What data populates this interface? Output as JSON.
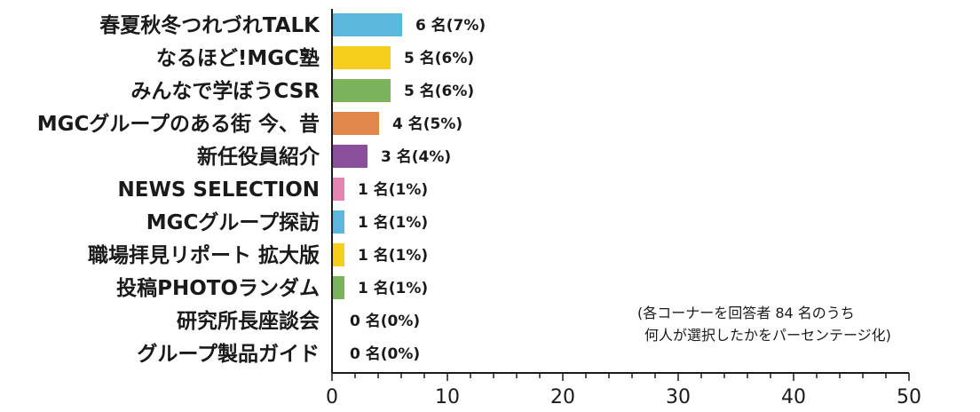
{
  "chart_data": {
    "type": "bar",
    "orientation": "horizontal",
    "categories": [
      "春夏秋冬つれづれTALK",
      "なるほど!MGC塾",
      "みんなで学ぼうCSR",
      "MGCグループのある街 今、昔",
      "新任役員紹介",
      "NEWS SELECTION",
      "MGCグループ探訪",
      "職場拝見リポート 拡大版",
      "投稿PHOTOランダム",
      "研究所長座談会",
      "グループ製品ガイド"
    ],
    "values": [
      6,
      5,
      5,
      4,
      3,
      1,
      1,
      1,
      1,
      0,
      0
    ],
    "value_labels": [
      "6 名(7%)",
      "5 名(6%)",
      "5 名(6%)",
      "4 名(5%)",
      "3 名(4%)",
      "1 名(1%)",
      "1 名(1%)",
      "1 名(1%)",
      "1 名(1%)",
      "0 名(0%)",
      "0 名(0%)"
    ],
    "colors": [
      "#5bb8dd",
      "#f5cf1c",
      "#7cb35a",
      "#e0874a",
      "#8a4e9a",
      "#e884b4",
      "#5bb8dd",
      "#f5cf1c",
      "#7cb35a",
      "#ffffff",
      "#ffffff"
    ],
    "xlim": [
      0,
      50
    ],
    "xticks": [
      "0",
      "10",
      "20",
      "30",
      "40",
      "50"
    ],
    "grid": false,
    "note": [
      "(各コーナーを回答者 84 名のうち",
      "何人が選択したかをパーセンテージ化)"
    ]
  }
}
